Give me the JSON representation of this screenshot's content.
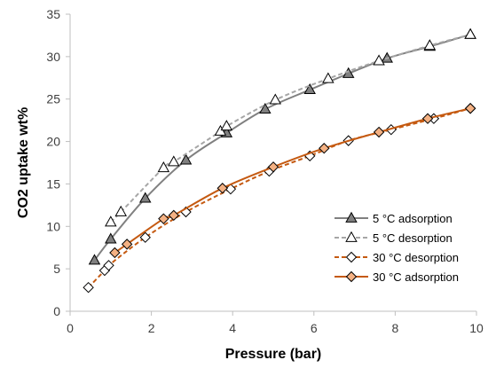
{
  "chart_data": {
    "type": "scatter",
    "xlabel": "Pressure (bar)",
    "ylabel": "CO2 uptake wt%",
    "xlim": [
      0,
      10
    ],
    "ylim": [
      0,
      35
    ],
    "xticks": [
      0,
      2,
      4,
      6,
      8,
      10
    ],
    "yticks": [
      0,
      5,
      10,
      15,
      20,
      25,
      30,
      35
    ],
    "grid": false,
    "legend_position": "bottom-right",
    "series": [
      {
        "name": "5 °C adsorption",
        "marker": "triangle",
        "marker_fill": "#808080",
        "line_color": "#808080",
        "line_style": "solid",
        "x": [
          0.6,
          1.0,
          1.85,
          2.85,
          3.85,
          4.8,
          5.9,
          6.85,
          7.8,
          8.85,
          9.85
        ],
        "y": [
          6.0,
          8.5,
          13.3,
          17.8,
          21.0,
          23.8,
          26.1,
          28.0,
          29.8,
          31.2,
          32.6
        ]
      },
      {
        "name": "5 °C desorption",
        "marker": "triangle",
        "marker_fill": "#ffffff",
        "line_color": "#a6a6a6",
        "line_style": "dashed",
        "x": [
          1.0,
          1.25,
          2.3,
          2.55,
          3.7,
          3.85,
          5.05,
          6.35,
          7.6,
          8.85,
          9.85
        ],
        "y": [
          10.5,
          11.7,
          16.9,
          17.6,
          21.2,
          21.8,
          24.9,
          27.4,
          29.5,
          31.3,
          32.6
        ]
      },
      {
        "name": "30 °C desorption",
        "marker": "diamond",
        "marker_fill": "#ffffff",
        "line_color": "#c55a11",
        "line_style": "dashed",
        "x": [
          0.45,
          0.85,
          0.95,
          1.85,
          2.85,
          3.95,
          4.9,
          5.9,
          6.85,
          7.9,
          8.95,
          9.85
        ],
        "y": [
          2.8,
          4.8,
          5.4,
          8.7,
          11.7,
          14.4,
          16.5,
          18.3,
          20.1,
          21.4,
          22.7,
          23.9
        ]
      },
      {
        "name": "30 °C adsorption",
        "marker": "diamond",
        "marker_fill": "#f4b183",
        "line_color": "#c55a11",
        "line_style": "solid",
        "x": [
          1.1,
          1.4,
          2.3,
          2.55,
          3.75,
          5.0,
          6.25,
          7.6,
          8.8,
          9.85
        ],
        "y": [
          6.9,
          7.9,
          10.9,
          11.3,
          14.5,
          17.0,
          19.2,
          21.1,
          22.7,
          23.9
        ]
      }
    ]
  }
}
